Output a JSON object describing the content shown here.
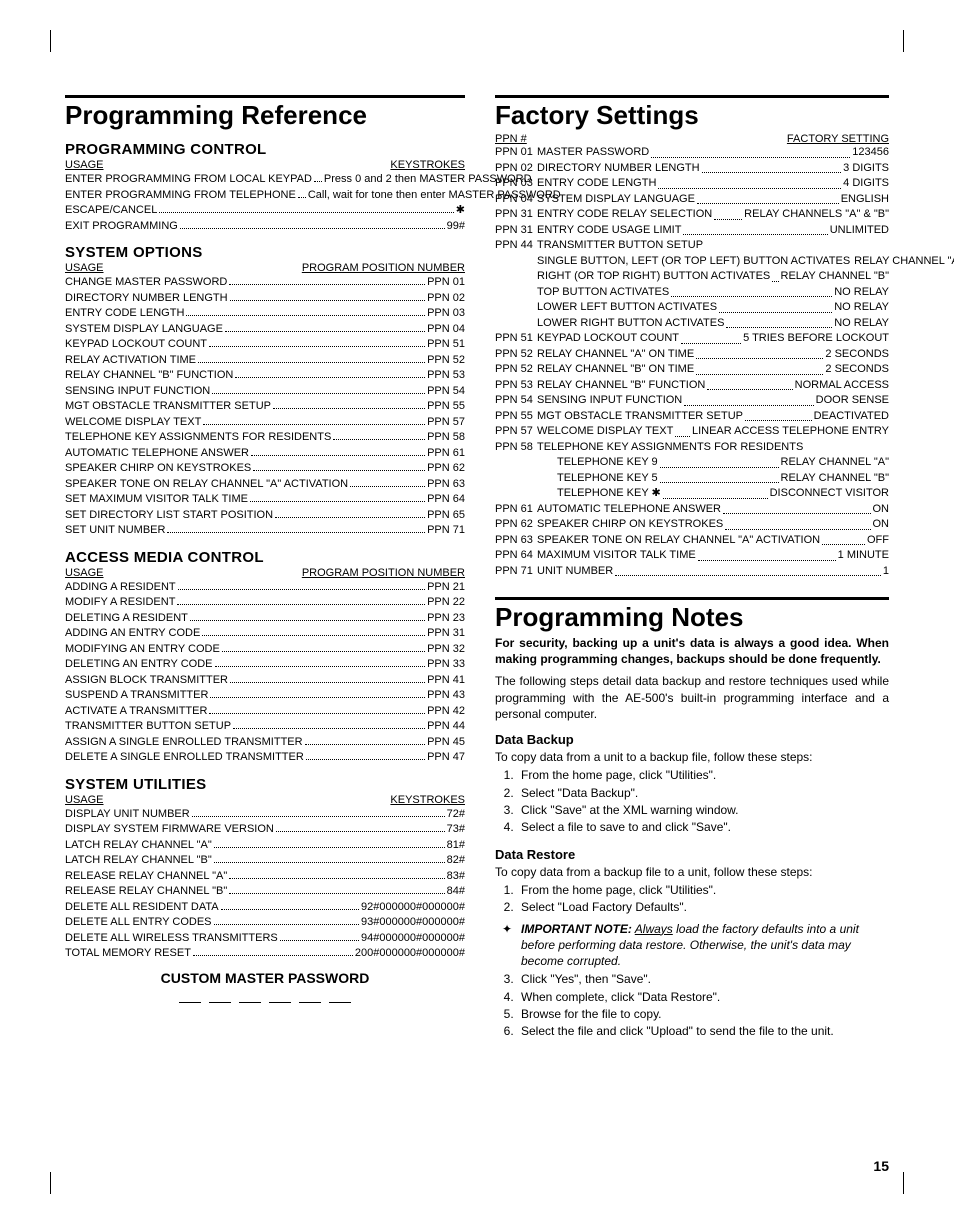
{
  "titles": {
    "prog_ref": "Programming Reference",
    "factory": "Factory Settings",
    "prog_notes": "Programming Notes",
    "custom_pwd": "CUSTOM MASTER PASSWORD"
  },
  "sections": {
    "prog_control": "PROGRAMMING CONTROL",
    "sys_options": "SYSTEM OPTIONS",
    "access_media": "ACCESS MEDIA CONTROL",
    "sys_util": "SYSTEM UTILITIES",
    "backup": "Data Backup",
    "restore": "Data Restore"
  },
  "headers": {
    "usage": "USAGE",
    "keystrokes": "KEYSTROKES",
    "ppn": "PROGRAM POSITION NUMBER",
    "ppn_num": "PPN #",
    "factory_setting": "FACTORY SETTING"
  },
  "prog_control_rows": [
    {
      "l": "ENTER PROGRAMMING FROM LOCAL KEYPAD",
      "r": "Press 0 and 2 then MASTER PASSWORD"
    },
    {
      "l": "ENTER PROGRAMMING FROM TELEPHONE",
      "r": "Call, wait for tone then enter MASTER PASSWORD"
    },
    {
      "l": "ESCAPE/CANCEL",
      "r": "✱"
    },
    {
      "l": "EXIT PROGRAMMING",
      "r": "99#"
    }
  ],
  "sys_options_rows": [
    {
      "l": "CHANGE MASTER PASSWORD",
      "r": "PPN 01"
    },
    {
      "l": "DIRECTORY NUMBER LENGTH",
      "r": "PPN 02"
    },
    {
      "l": "ENTRY CODE LENGTH",
      "r": "PPN 03"
    },
    {
      "l": "SYSTEM DISPLAY LANGUAGE",
      "r": "PPN 04"
    },
    {
      "l": "KEYPAD LOCKOUT COUNT",
      "r": "PPN 51"
    },
    {
      "l": "RELAY ACTIVATION TIME",
      "r": "PPN 52"
    },
    {
      "l": "RELAY CHANNEL \"B\" FUNCTION",
      "r": "PPN 53"
    },
    {
      "l": "SENSING INPUT FUNCTION",
      "r": "PPN 54"
    },
    {
      "l": "MGT OBSTACLE TRANSMITTER SETUP",
      "r": "PPN 55"
    },
    {
      "l": "WELCOME DISPLAY TEXT",
      "r": "PPN 57"
    },
    {
      "l": "TELEPHONE KEY ASSIGNMENTS FOR RESIDENTS",
      "r": "PPN 58"
    },
    {
      "l": "AUTOMATIC TELEPHONE ANSWER",
      "r": "PPN 61"
    },
    {
      "l": "SPEAKER CHIRP ON KEYSTROKES",
      "r": "PPN 62"
    },
    {
      "l": "SPEAKER TONE ON RELAY CHANNEL \"A\" ACTIVATION",
      "r": "PPN 63"
    },
    {
      "l": "SET MAXIMUM VISITOR TALK TIME",
      "r": "PPN 64"
    },
    {
      "l": "SET DIRECTORY LIST START POSITION",
      "r": "PPN 65"
    },
    {
      "l": "SET UNIT NUMBER",
      "r": "PPN 71"
    }
  ],
  "access_media_rows": [
    {
      "l": "ADDING A RESIDENT",
      "r": "PPN 21"
    },
    {
      "l": "MODIFY A RESIDENT",
      "r": "PPN 22"
    },
    {
      "l": "DELETING A RESIDENT",
      "r": "PPN 23"
    },
    {
      "l": "ADDING AN ENTRY CODE",
      "r": "PPN 31"
    },
    {
      "l": "MODIFYING AN ENTRY CODE",
      "r": "PPN 32"
    },
    {
      "l": "DELETING AN ENTRY CODE",
      "r": "PPN 33"
    },
    {
      "l": "ASSIGN BLOCK TRANSMITTER",
      "r": "PPN 41"
    },
    {
      "l": "SUSPEND A TRANSMITTER",
      "r": "PPN 43"
    },
    {
      "l": "ACTIVATE A TRANSMITTER",
      "r": "PPN 42"
    },
    {
      "l": "TRANSMITTER BUTTON SETUP",
      "r": "PPN 44"
    },
    {
      "l": "ASSIGN A SINGLE ENROLLED TRANSMITTER",
      "r": "PPN 45"
    },
    {
      "l": "DELETE A SINGLE ENROLLED TRANSMITTER",
      "r": "PPN 47"
    }
  ],
  "sys_util_rows": [
    {
      "l": "DISPLAY UNIT NUMBER",
      "r": "72#"
    },
    {
      "l": "DISPLAY SYSTEM FIRMWARE VERSION",
      "r": "73#"
    },
    {
      "l": "LATCH RELAY CHANNEL \"A\"",
      "r": "81#"
    },
    {
      "l": "LATCH RELAY CHANNEL \"B\"",
      "r": "82#"
    },
    {
      "l": "RELEASE RELAY CHANNEL \"A\"",
      "r": "83#"
    },
    {
      "l": "RELEASE RELAY CHANNEL \"B\"",
      "r": "84#"
    },
    {
      "l": "DELETE ALL RESIDENT DATA",
      "r": "92#000000#000000#"
    },
    {
      "l": "DELETE ALL ENTRY CODES",
      "r": "93#000000#000000#"
    },
    {
      "l": "DELETE ALL WIRELESS TRANSMITTERS",
      "r": "94#000000#000000#"
    },
    {
      "l": "TOTAL MEMORY RESET",
      "r": "200#000000#000000#"
    }
  ],
  "factory_rows": [
    {
      "ppn": "PPN 01",
      "l": "MASTER PASSWORD",
      "r": "123456"
    },
    {
      "ppn": "PPN 02",
      "l": "DIRECTORY NUMBER LENGTH",
      "r": "3 DIGITS"
    },
    {
      "ppn": "PPN 03",
      "l": "ENTRY CODE LENGTH",
      "r": "4 DIGITS"
    },
    {
      "ppn": "PPN 04",
      "l": "SYSTEM DISPLAY LANGUAGE",
      "r": "ENGLISH"
    },
    {
      "ppn": "PPN 31",
      "l": "ENTRY CODE RELAY SELECTION",
      "r": "RELAY CHANNELS \"A\" & \"B\""
    },
    {
      "ppn": "PPN 31",
      "l": "ENTRY CODE USAGE LIMIT",
      "r": "UNLIMITED"
    },
    {
      "ppn": "PPN 44",
      "l": "TRANSMITTER BUTTON SETUP",
      "noval": true
    },
    {
      "ppn": "",
      "l": "SINGLE BUTTON, LEFT (OR TOP LEFT) BUTTON ACTIVATES",
      "r": "RELAY CHANNEL \"A\""
    },
    {
      "ppn": "",
      "l": "RIGHT (OR TOP RIGHT) BUTTON ACTIVATES",
      "r": "RELAY CHANNEL \"B\""
    },
    {
      "ppn": "",
      "l": "TOP BUTTON ACTIVATES",
      "r": "NO RELAY"
    },
    {
      "ppn": "",
      "l": "LOWER LEFT BUTTON ACTIVATES",
      "r": "NO RELAY"
    },
    {
      "ppn": "",
      "l": "LOWER RIGHT BUTTON ACTIVATES",
      "r": "NO RELAY"
    },
    {
      "ppn": "PPN 51",
      "l": "KEYPAD LOCKOUT COUNT",
      "r": "5 TRIES BEFORE LOCKOUT"
    },
    {
      "ppn": "PPN 52",
      "l": "RELAY CHANNEL \"A\" ON TIME",
      "r": "2 SECONDS"
    },
    {
      "ppn": "PPN 52",
      "l": "RELAY CHANNEL \"B\" ON TIME",
      "r": "2 SECONDS"
    },
    {
      "ppn": "PPN 53",
      "l": "RELAY CHANNEL \"B\" FUNCTION",
      "r": "NORMAL ACCESS"
    },
    {
      "ppn": "PPN 54",
      "l": "SENSING INPUT FUNCTION",
      "r": "DOOR SENSE"
    },
    {
      "ppn": "PPN 55",
      "l": "MGT OBSTACLE TRANSMITTER SETUP",
      "r": "DEACTIVATED"
    },
    {
      "ppn": "PPN 57",
      "l": "WELCOME DISPLAY TEXT",
      "r": "LINEAR ACCESS TELEPHONE ENTRY"
    },
    {
      "ppn": "PPN 58",
      "l": "TELEPHONE KEY ASSIGNMENTS FOR RESIDENTS",
      "noval": true
    },
    {
      "ppn": "",
      "l": "TELEPHONE KEY 9",
      "r": "RELAY CHANNEL \"A\"",
      "indent": true
    },
    {
      "ppn": "",
      "l": "TELEPHONE KEY 5",
      "r": "RELAY CHANNEL \"B\"",
      "indent": true
    },
    {
      "ppn": "",
      "l": "TELEPHONE KEY ✱",
      "r": "DISCONNECT VISITOR",
      "indent": true
    },
    {
      "ppn": "PPN 61",
      "l": "AUTOMATIC TELEPHONE ANSWER",
      "r": "ON"
    },
    {
      "ppn": "PPN 62",
      "l": "SPEAKER CHIRP ON KEYSTROKES",
      "r": "ON"
    },
    {
      "ppn": "PPN 63",
      "l": "SPEAKER TONE ON RELAY CHANNEL \"A\" ACTIVATION",
      "r": "OFF"
    },
    {
      "ppn": "PPN 64",
      "l": "MAXIMUM VISITOR TALK TIME",
      "r": "1 MINUTE"
    },
    {
      "ppn": "PPN 71",
      "l": "UNIT NUMBER",
      "r": "1"
    }
  ],
  "notes": {
    "p1": "For security, backing up a unit's data is always a good idea. When making programming changes, backups should be done frequently.",
    "p2": "The following steps detail data backup and restore techniques used while programming with the AE-500's built-in programming interface and a personal computer.",
    "backup_intro": "To copy data from a unit to a backup file, follow these steps:",
    "backup_steps": [
      "From the home page, click \"Utilities\".",
      "Select \"Data Backup\".",
      "Click \"Save\" at the XML warning window.",
      "Select a file to save to and click \"Save\"."
    ],
    "restore_intro": "To copy data from a backup file to a unit, follow these steps:",
    "restore_steps_a": [
      "From the home page, click \"Utilities\".",
      "Select \"Load Factory Defaults\"."
    ],
    "restore_note_label": "IMPORTANT NOTE:",
    "restore_note_text": " Always load the factory defaults into a unit before performing data restore. Otherwise, the unit's data may become corrupted.",
    "restore_steps_b": [
      "Click \"Yes\", then \"Save\".",
      "When complete, click \"Data Restore\".",
      "Browse for the file to copy.",
      "Select the file and click \"Upload\" to send the file to the unit."
    ]
  },
  "page_num": "15"
}
